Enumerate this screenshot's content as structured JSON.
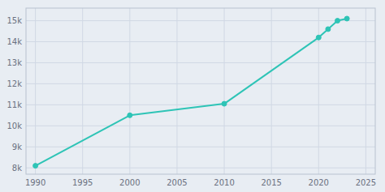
{
  "chart_data": {
    "type": "line",
    "x": [
      1990,
      2000,
      2010,
      2020,
      2021,
      2022,
      2023
    ],
    "values": [
      8100,
      10500,
      11050,
      14200,
      14600,
      15000,
      15100
    ],
    "color": "#2ec4b6",
    "marker": "circle",
    "grid": true,
    "xlim": [
      1989,
      2026
    ],
    "ylim": [
      7700,
      15600
    ],
    "xticks": [
      1990,
      1995,
      2000,
      2005,
      2010,
      2015,
      2020,
      2025
    ],
    "yticks": [
      {
        "value": 8000,
        "label": "8k"
      },
      {
        "value": 9000,
        "label": "9k"
      },
      {
        "value": 10000,
        "label": "10k"
      },
      {
        "value": 11000,
        "label": "11k"
      },
      {
        "value": 12000,
        "label": "12k"
      },
      {
        "value": 13000,
        "label": "13k"
      },
      {
        "value": 14000,
        "label": "14k"
      },
      {
        "value": 15000,
        "label": "15k"
      }
    ]
  }
}
